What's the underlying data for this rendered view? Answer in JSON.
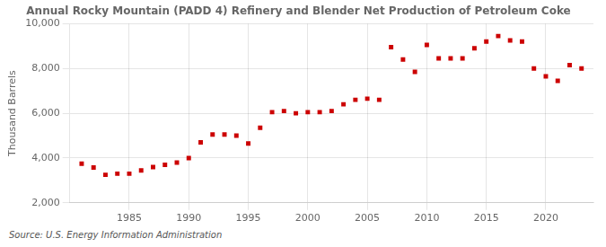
{
  "chart_data": {
    "type": "scatter",
    "title": "Annual Rocky Mountain (PADD 4) Refinery and Blender Net Production of Petroleum Coke",
    "ylabel": "Thousand Barrels",
    "source": "Source: U.S. Energy Information Administration",
    "x": [
      1981,
      1982,
      1983,
      1984,
      1985,
      1986,
      1987,
      1988,
      1989,
      1990,
      1991,
      1992,
      1993,
      1994,
      1995,
      1996,
      1997,
      1998,
      1999,
      2000,
      2001,
      2002,
      2003,
      2004,
      2005,
      2006,
      2007,
      2008,
      2009,
      2010,
      2011,
      2012,
      2013,
      2014,
      2015,
      2016,
      2017,
      2018,
      2019,
      2020,
      2021,
      2022,
      2023
    ],
    "values": [
      3750,
      3580,
      3250,
      3300,
      3300,
      3450,
      3600,
      3700,
      3800,
      4000,
      4700,
      5050,
      5050,
      5000,
      4650,
      5350,
      6050,
      6100,
      6000,
      6050,
      6050,
      6100,
      6400,
      6600,
      6650,
      6600,
      8950,
      8400,
      7850,
      9050,
      8450,
      8450,
      8450,
      8900,
      9200,
      9450,
      9250,
      9200,
      8000,
      7650,
      7450,
      8150,
      8000
    ],
    "color": "#cc0000",
    "marker": "square",
    "xlim": [
      1980,
      2024
    ],
    "xticks": [
      1985,
      1990,
      1995,
      2000,
      2005,
      2010,
      2015,
      2020
    ],
    "ylim": [
      2000,
      10000
    ],
    "yticks": [
      {
        "value": 2000,
        "label": "2,000"
      },
      {
        "value": 4000,
        "label": "4,000"
      },
      {
        "value": 6000,
        "label": "6,000"
      },
      {
        "value": 8000,
        "label": "8,000"
      },
      {
        "value": 10000,
        "label": "10,000"
      }
    ],
    "grid": true
  }
}
